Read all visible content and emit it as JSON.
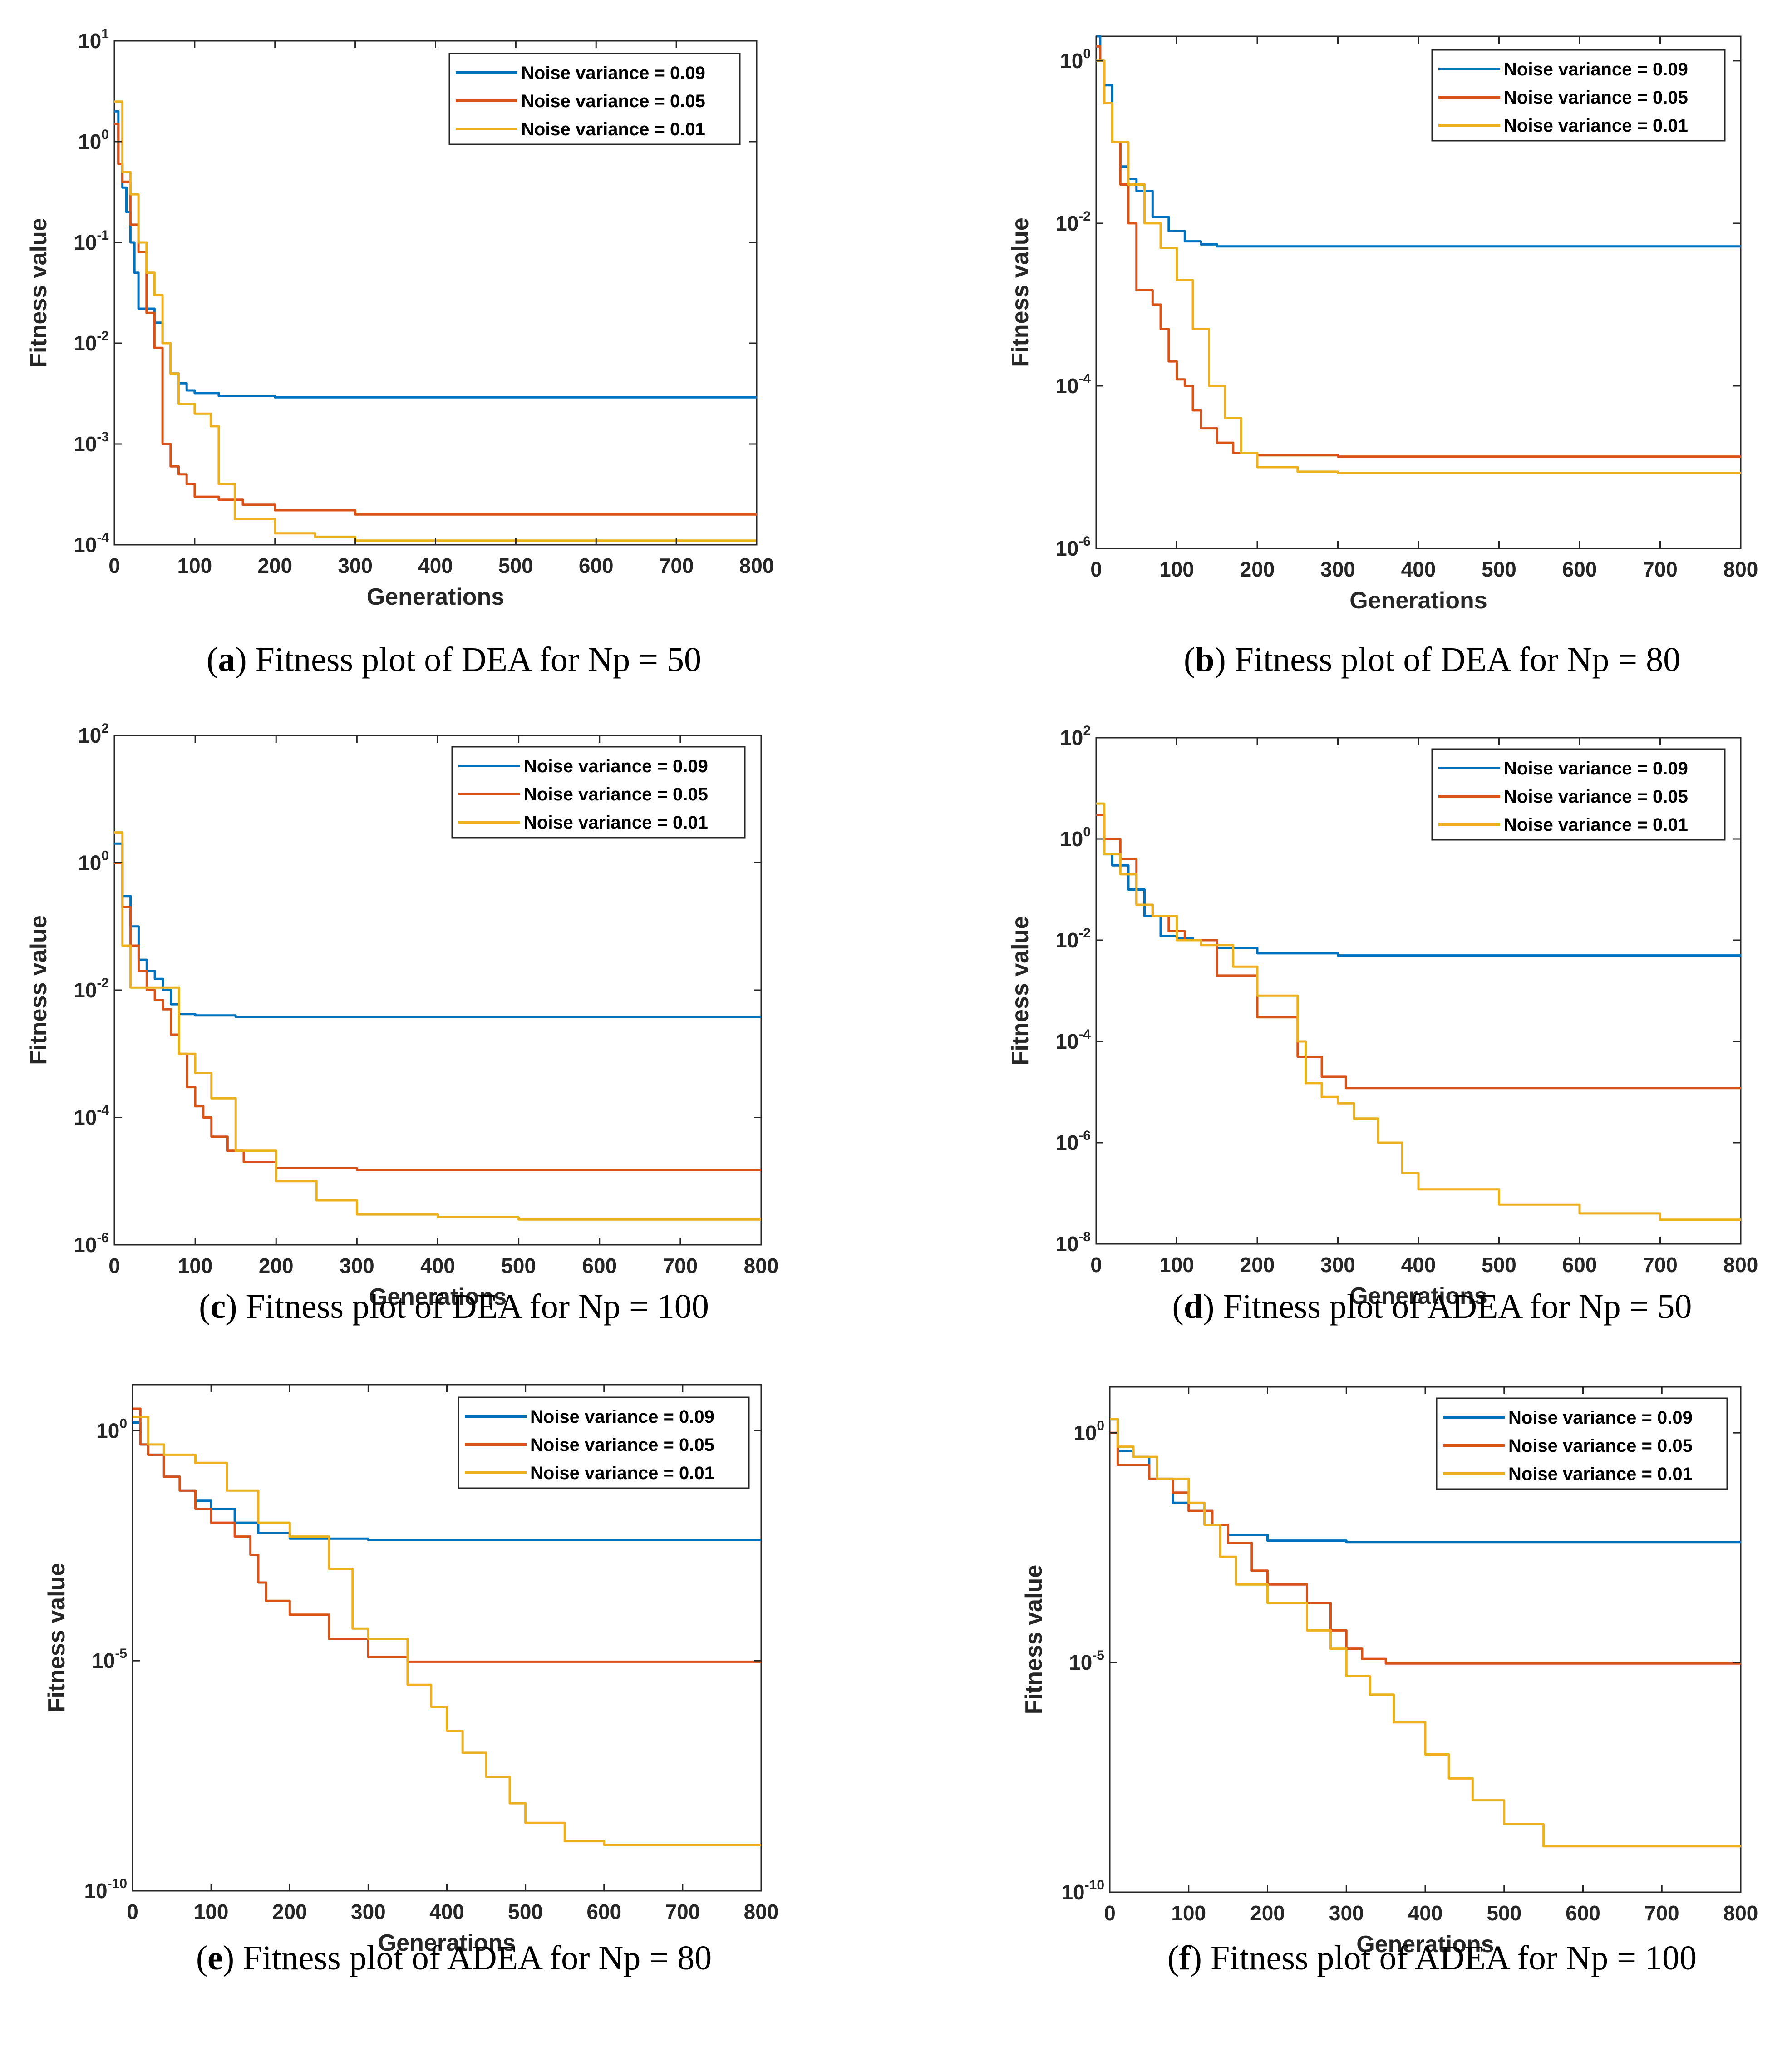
{
  "colors": {
    "series_0": "#0072BD",
    "series_1": "#D95319",
    "series_2": "#EDB120"
  },
  "chart_data": [
    {
      "id": "a",
      "type": "line",
      "yscale": "log",
      "xlabel": "Generations",
      "ylabel": "Fitness value",
      "xlim": [
        0,
        800
      ],
      "ylim": [
        0.0001,
        10
      ],
      "xticks": [
        "0",
        "100",
        "200",
        "300",
        "400",
        "500",
        "600",
        "700",
        "800"
      ],
      "yticks": [
        {
          "base": "10",
          "exp": "1"
        },
        {
          "base": "10",
          "exp": "0"
        },
        {
          "base": "10",
          "exp": "-1"
        },
        {
          "base": "10",
          "exp": "-2"
        },
        {
          "base": "10",
          "exp": "-3"
        },
        {
          "base": "10",
          "exp": "-4"
        }
      ],
      "caption": {
        "letter": "a",
        "text": " Fitness plot of DEA for Np = 50"
      },
      "series": [
        {
          "name": "Noise variance = 0.09",
          "x": [
            0,
            5,
            10,
            15,
            20,
            25,
            30,
            40,
            50,
            60,
            70,
            80,
            90,
            100,
            130,
            200,
            300,
            500,
            800
          ],
          "y": [
            2,
            0.6,
            0.35,
            0.2,
            0.1,
            0.05,
            0.022,
            0.022,
            0.016,
            0.01,
            0.005,
            0.004,
            0.0034,
            0.0032,
            0.003,
            0.0029,
            0.0029,
            0.0029,
            0.0029
          ]
        },
        {
          "name": "Noise variance = 0.05",
          "x": [
            0,
            5,
            10,
            20,
            30,
            40,
            50,
            60,
            70,
            80,
            90,
            100,
            110,
            130,
            160,
            200,
            300,
            500,
            800
          ],
          "y": [
            1.5,
            0.6,
            0.4,
            0.15,
            0.08,
            0.02,
            0.009,
            0.001,
            0.0006,
            0.0005,
            0.0004,
            0.0003,
            0.0003,
            0.00028,
            0.00025,
            0.00022,
            0.0002,
            0.0002,
            0.0002
          ]
        },
        {
          "name": "Noise variance = 0.01",
          "x": [
            0,
            10,
            20,
            30,
            40,
            50,
            60,
            70,
            80,
            100,
            120,
            130,
            150,
            200,
            250,
            300,
            500,
            800
          ],
          "y": [
            2.5,
            0.5,
            0.3,
            0.1,
            0.05,
            0.03,
            0.01,
            0.005,
            0.0025,
            0.002,
            0.0015,
            0.0004,
            0.00018,
            0.00013,
            0.00012,
            0.00011,
            0.00011,
            0.00011
          ]
        }
      ]
    },
    {
      "id": "b",
      "type": "line",
      "yscale": "log",
      "xlabel": "Generations",
      "ylabel": "Fitness value",
      "xlim": [
        0,
        800
      ],
      "ylim": [
        1e-06,
        2
      ],
      "xticks": [
        "0",
        "100",
        "200",
        "300",
        "400",
        "500",
        "600",
        "700",
        "800"
      ],
      "yticks": [
        {
          "base": "10",
          "exp": "0"
        },
        {
          "base": "10",
          "exp": "-2"
        },
        {
          "base": "10",
          "exp": "-4"
        },
        {
          "base": "10",
          "exp": "-6"
        }
      ],
      "caption": {
        "letter": "b",
        "text": " Fitness plot of DEA for Np = 80"
      },
      "series": [
        {
          "name": "Noise variance = 0.09",
          "x": [
            0,
            5,
            10,
            20,
            30,
            40,
            50,
            70,
            90,
            110,
            130,
            150,
            200,
            300,
            800
          ],
          "y": [
            2,
            1,
            0.5,
            0.1,
            0.05,
            0.035,
            0.025,
            0.012,
            0.008,
            0.006,
            0.0055,
            0.0052,
            0.0052,
            0.0052,
            0.0052
          ]
        },
        {
          "name": "Noise variance = 0.05",
          "x": [
            0,
            5,
            10,
            20,
            30,
            40,
            50,
            60,
            70,
            80,
            90,
            100,
            110,
            120,
            130,
            150,
            170,
            200,
            300,
            800
          ],
          "y": [
            1.5,
            1,
            0.3,
            0.1,
            0.03,
            0.01,
            0.0015,
            0.0015,
            0.001,
            0.0005,
            0.0002,
            0.00012,
            0.0001,
            5e-05,
            3e-05,
            2e-05,
            1.5e-05,
            1.4e-05,
            1.35e-05,
            1.35e-05
          ]
        },
        {
          "name": "Noise variance = 0.01",
          "x": [
            0,
            10,
            20,
            40,
            60,
            80,
            100,
            120,
            140,
            160,
            180,
            200,
            250,
            300,
            800
          ],
          "y": [
            1,
            0.3,
            0.1,
            0.03,
            0.01,
            0.005,
            0.002,
            0.0005,
            0.0001,
            4e-05,
            1.5e-05,
            1e-05,
            8.8e-06,
            8.5e-06,
            8.5e-06
          ]
        }
      ]
    },
    {
      "id": "c",
      "type": "line",
      "yscale": "log",
      "xlabel": "Generations",
      "ylabel": "Fitness value",
      "xlim": [
        0,
        800
      ],
      "ylim": [
        1e-06,
        100
      ],
      "xticks": [
        "0",
        "100",
        "200",
        "300",
        "400",
        "500",
        "600",
        "700",
        "800"
      ],
      "yticks": [
        {
          "base": "10",
          "exp": "2"
        },
        {
          "base": "10",
          "exp": "0"
        },
        {
          "base": "10",
          "exp": "-2"
        },
        {
          "base": "10",
          "exp": "-4"
        },
        {
          "base": "10",
          "exp": "-6"
        }
      ],
      "caption": {
        "letter": "c",
        "text": " Fitness plot of DEA for Np = 100"
      },
      "series": [
        {
          "name": "Noise variance = 0.09",
          "x": [
            0,
            10,
            20,
            30,
            40,
            50,
            60,
            70,
            80,
            100,
            150,
            200,
            300,
            800
          ],
          "y": [
            2,
            0.3,
            0.1,
            0.03,
            0.02,
            0.015,
            0.01,
            0.006,
            0.0042,
            0.004,
            0.0038,
            0.0038,
            0.0038,
            0.0038
          ]
        },
        {
          "name": "Noise variance = 0.05",
          "x": [
            0,
            10,
            20,
            30,
            40,
            50,
            60,
            70,
            80,
            90,
            100,
            110,
            120,
            140,
            160,
            200,
            300,
            800
          ],
          "y": [
            1,
            0.2,
            0.05,
            0.02,
            0.01,
            0.007,
            0.005,
            0.002,
            0.001,
            0.0003,
            0.00015,
            0.0001,
            5e-05,
            3e-05,
            2e-05,
            1.6e-05,
            1.5e-05,
            1.5e-05
          ]
        },
        {
          "name": "Noise variance = 0.01",
          "x": [
            0,
            10,
            20,
            60,
            80,
            100,
            120,
            150,
            200,
            250,
            300,
            400,
            500,
            800
          ],
          "y": [
            3,
            0.05,
            0.011,
            0.011,
            0.001,
            0.0005,
            0.0002,
            3e-05,
            1e-05,
            5e-06,
            3e-06,
            2.7e-06,
            2.5e-06,
            2.5e-06
          ]
        }
      ]
    },
    {
      "id": "d",
      "type": "line",
      "yscale": "log",
      "xlabel": "Generations",
      "ylabel": "Fitness value",
      "xlim": [
        0,
        800
      ],
      "ylim": [
        1e-08,
        100
      ],
      "xticks": [
        "0",
        "100",
        "200",
        "300",
        "400",
        "500",
        "600",
        "700",
        "800"
      ],
      "yticks": [
        {
          "base": "10",
          "exp": "2"
        },
        {
          "base": "10",
          "exp": "0"
        },
        {
          "base": "10",
          "exp": "-2"
        },
        {
          "base": "10",
          "exp": "-4"
        },
        {
          "base": "10",
          "exp": "-6"
        },
        {
          "base": "10",
          "exp": "-8"
        }
      ],
      "caption": {
        "letter": "d",
        "text": " Fitness plot of ADEA for Np = 50"
      },
      "series": [
        {
          "name": "Noise variance = 0.09",
          "x": [
            0,
            10,
            20,
            40,
            60,
            80,
            100,
            120,
            150,
            200,
            300,
            800
          ],
          "y": [
            3,
            0.5,
            0.3,
            0.1,
            0.03,
            0.012,
            0.011,
            0.01,
            0.007,
            0.0055,
            0.005,
            0.005
          ]
        },
        {
          "name": "Noise variance = 0.05",
          "x": [
            0,
            10,
            30,
            50,
            70,
            90,
            110,
            150,
            200,
            250,
            280,
            310,
            400,
            800
          ],
          "y": [
            3,
            1,
            0.4,
            0.05,
            0.03,
            0.015,
            0.01,
            0.002,
            0.0003,
            5e-05,
            2e-05,
            1.2e-05,
            1.2e-05,
            1.2e-05
          ]
        },
        {
          "name": "Noise variance = 0.01",
          "x": [
            0,
            10,
            30,
            50,
            70,
            100,
            130,
            170,
            200,
            250,
            260,
            280,
            300,
            320,
            350,
            380,
            400,
            500,
            600,
            700,
            800
          ],
          "y": [
            5,
            0.5,
            0.2,
            0.05,
            0.03,
            0.01,
            0.008,
            0.003,
            0.0008,
            0.0001,
            1.5e-05,
            8e-06,
            6e-06,
            3e-06,
            1e-06,
            2.5e-07,
            1.2e-07,
            6e-08,
            4e-08,
            3e-08,
            3e-08
          ]
        }
      ]
    },
    {
      "id": "e",
      "type": "line",
      "yscale": "log",
      "xlabel": "Generations",
      "ylabel": "Fitness value",
      "xlim": [
        0,
        800
      ],
      "ylim": [
        1e-10,
        10
      ],
      "xticks": [
        "0",
        "100",
        "200",
        "300",
        "400",
        "500",
        "600",
        "700",
        "800"
      ],
      "yticks": [
        {
          "base": "10",
          "exp": "0"
        },
        {
          "base": "10",
          "exp": "-5"
        },
        {
          "base": "10",
          "exp": "-10"
        }
      ],
      "caption": {
        "letter": "e",
        "text": " Fitness plot of ADEA for Np = 80"
      },
      "series": [
        {
          "name": "Noise variance = 0.09",
          "x": [
            0,
            10,
            20,
            40,
            60,
            80,
            100,
            130,
            160,
            200,
            300,
            800
          ],
          "y": [
            1.5,
            0.5,
            0.3,
            0.1,
            0.05,
            0.03,
            0.02,
            0.01,
            0.006,
            0.0045,
            0.0042,
            0.0042
          ]
        },
        {
          "name": "Noise variance = 0.05",
          "x": [
            0,
            10,
            20,
            40,
            60,
            80,
            100,
            130,
            150,
            160,
            170,
            200,
            250,
            300,
            350,
            800
          ],
          "y": [
            3,
            0.5,
            0.3,
            0.1,
            0.05,
            0.02,
            0.01,
            0.005,
            0.002,
            0.0005,
            0.0002,
            0.0001,
            3e-05,
            1.2e-05,
            9.5e-06,
            9.5e-06
          ]
        },
        {
          "name": "Noise variance = 0.01",
          "x": [
            0,
            20,
            40,
            80,
            120,
            160,
            200,
            250,
            280,
            300,
            350,
            380,
            400,
            420,
            450,
            480,
            500,
            550,
            600,
            800
          ],
          "y": [
            2,
            0.5,
            0.3,
            0.2,
            0.05,
            0.01,
            0.005,
            0.001,
            5e-05,
            3e-05,
            3e-06,
            1e-06,
            3e-07,
            1e-07,
            3e-08,
            8e-09,
            3e-09,
            1.2e-09,
            1e-09,
            1e-09
          ]
        }
      ]
    },
    {
      "id": "f",
      "type": "line",
      "yscale": "log",
      "xlabel": "Generations",
      "ylabel": "Fitness value",
      "xlim": [
        0,
        800
      ],
      "ylim": [
        1e-10,
        10
      ],
      "xticks": [
        "0",
        "100",
        "200",
        "300",
        "400",
        "500",
        "600",
        "700",
        "800"
      ],
      "yticks": [
        {
          "base": "10",
          "exp": "0"
        },
        {
          "base": "10",
          "exp": "-5"
        },
        {
          "base": "10",
          "exp": "-10"
        }
      ],
      "caption": {
        "letter": "f",
        "text": " Fitness plot of ADEA for Np = 100"
      },
      "series": [
        {
          "name": "Noise variance = 0.09",
          "x": [
            0,
            10,
            30,
            50,
            80,
            100,
            130,
            150,
            200,
            300,
            800
          ],
          "y": [
            2,
            0.4,
            0.3,
            0.1,
            0.03,
            0.02,
            0.01,
            0.006,
            0.0045,
            0.0042,
            0.0042
          ]
        },
        {
          "name": "Noise variance = 0.05",
          "x": [
            0,
            10,
            30,
            50,
            80,
            100,
            130,
            150,
            180,
            200,
            250,
            280,
            300,
            320,
            350,
            800
          ],
          "y": [
            1,
            0.2,
            0.2,
            0.1,
            0.05,
            0.02,
            0.01,
            0.004,
            0.001,
            0.0005,
            0.0002,
            5e-05,
            2e-05,
            1.2e-05,
            9.5e-06,
            9.5e-06
          ]
        },
        {
          "name": "Noise variance = 0.01",
          "x": [
            0,
            10,
            30,
            60,
            100,
            120,
            140,
            160,
            200,
            250,
            280,
            300,
            330,
            360,
            400,
            430,
            460,
            500,
            550,
            800
          ],
          "y": [
            2,
            0.5,
            0.3,
            0.1,
            0.03,
            0.01,
            0.002,
            0.0005,
            0.0002,
            5e-05,
            2e-05,
            5e-06,
            2e-06,
            5e-07,
            1e-07,
            3e-08,
            1e-08,
            3e-09,
            1e-09,
            1e-09
          ]
        }
      ]
    }
  ]
}
